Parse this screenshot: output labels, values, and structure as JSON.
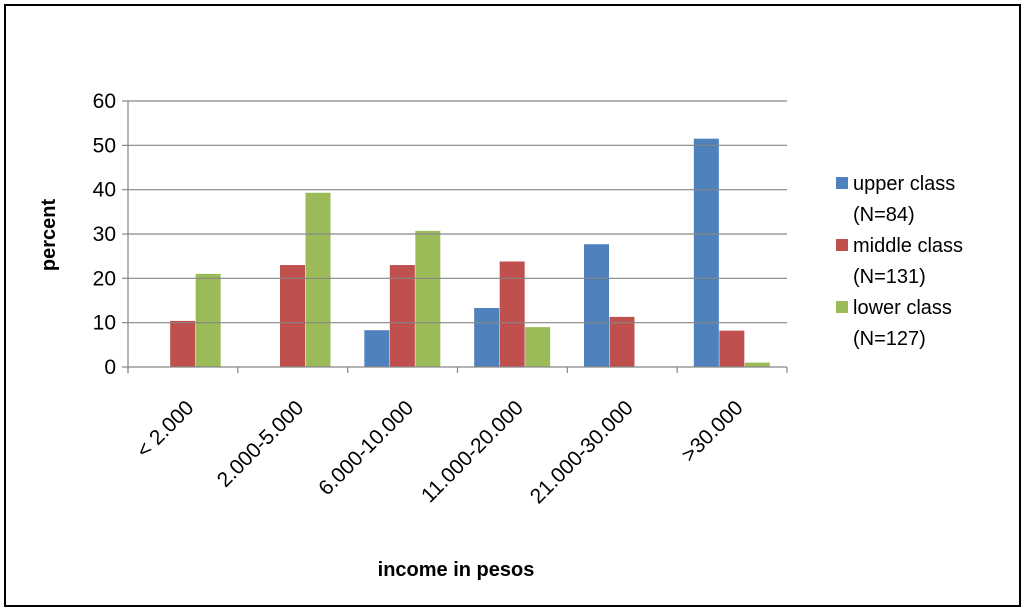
{
  "chart_data": {
    "type": "bar",
    "title": "",
    "xlabel": "income in pesos",
    "ylabel": "percent",
    "ylim": [
      0,
      60
    ],
    "yticks": [
      0,
      10,
      20,
      30,
      40,
      50,
      60
    ],
    "grid": false,
    "legend": "right",
    "categories": [
      "< 2.000",
      "2.000-5.000",
      "6.000-10.000",
      "11.000-20.000",
      "21.000-30.000",
      ">30.000"
    ],
    "series": [
      {
        "name": "upper class (N=84)",
        "legend_lines": [
          "upper class",
          "(N=84)"
        ],
        "color": "#4F81BD",
        "values": [
          0,
          0,
          8.3,
          13.3,
          27.7,
          51.5
        ]
      },
      {
        "name": "middle class (N=131)",
        "legend_lines": [
          "middle class",
          "(N=131)"
        ],
        "color": "#C0504D",
        "values": [
          10.4,
          23,
          23,
          23.8,
          11.3,
          8.2
        ]
      },
      {
        "name": "lower class (N=127)",
        "legend_lines": [
          "lower class",
          "(N=127)"
        ],
        "color": "#9BBB59",
        "values": [
          21,
          39.3,
          30.7,
          9,
          0,
          1
        ]
      }
    ]
  }
}
